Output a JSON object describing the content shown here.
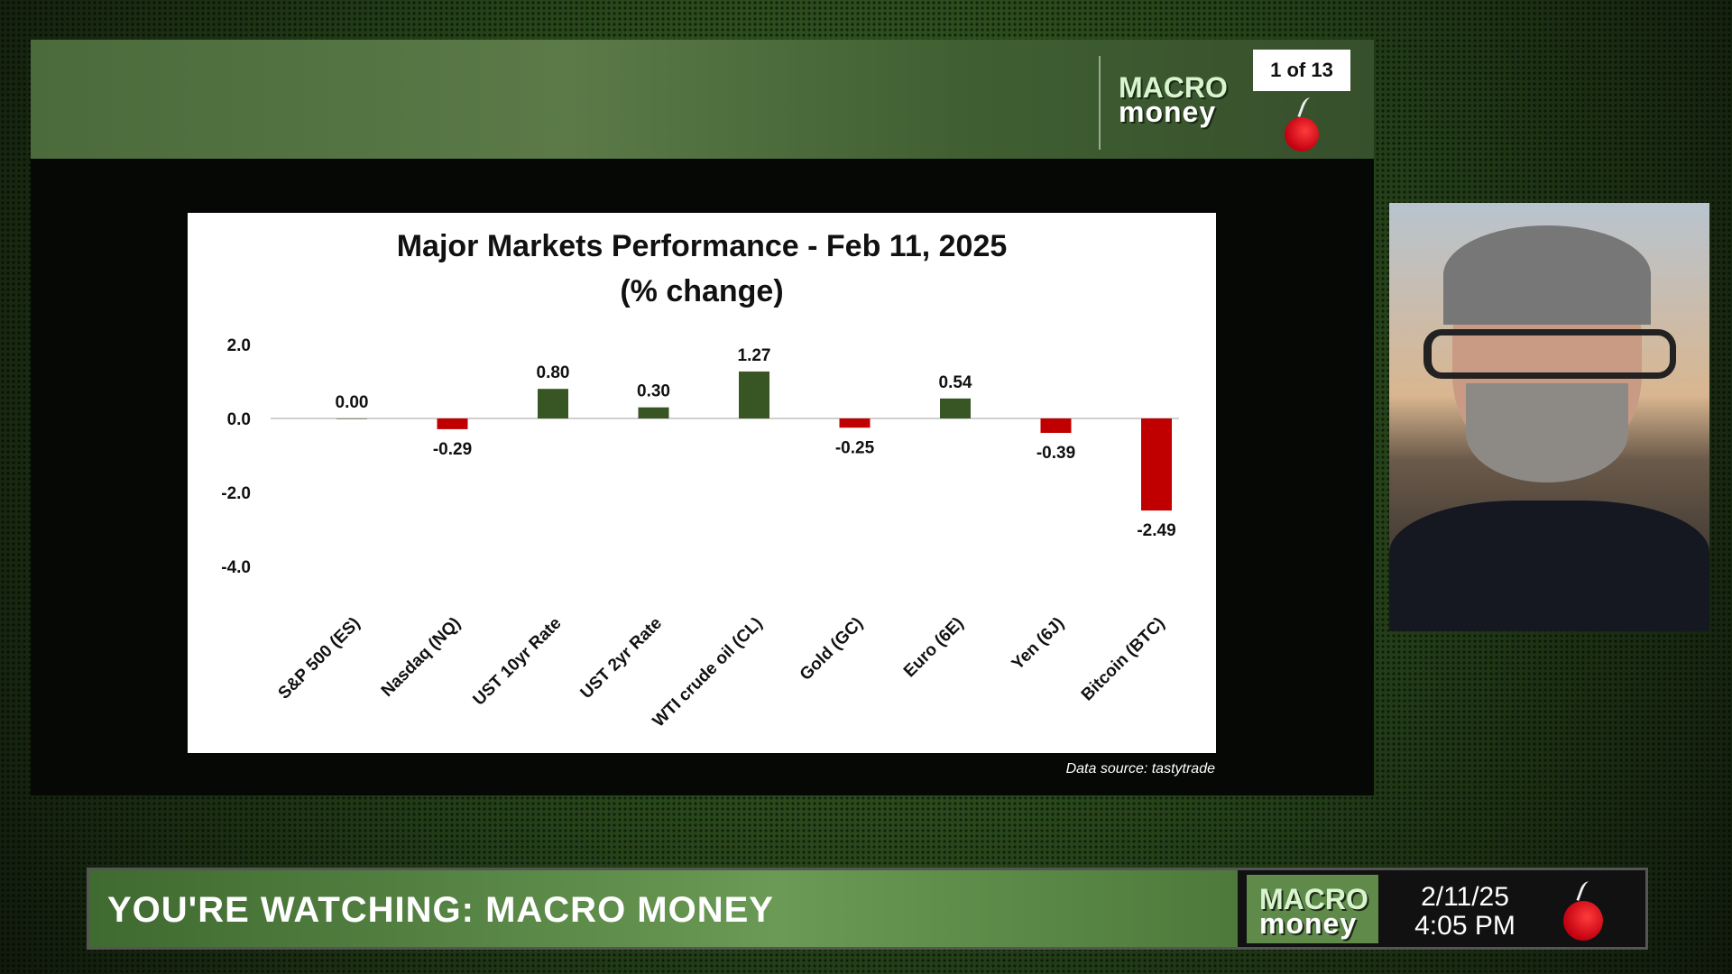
{
  "header": {
    "logo_top": "MACRO",
    "logo_bottom": "money",
    "page_indicator": "1 of 13"
  },
  "chart_data": {
    "type": "bar",
    "title": "Major Markets Performance - Feb 11, 2025",
    "subtitle": "(% change)",
    "categories": [
      "S&P 500 (ES)",
      "Nasdaq (NQ)",
      "UST 10yr Rate",
      "UST 2yr Rate",
      "WTI crude oil (CL)",
      "Gold (GC)",
      "Euro (6E)",
      "Yen (6J)",
      "Bitcoin (BTC)"
    ],
    "values": [
      0.0,
      -0.29,
      0.8,
      0.3,
      1.27,
      -0.25,
      0.54,
      -0.39,
      -2.49
    ],
    "labels": [
      "0.00",
      "-0.29",
      "0.80",
      "0.30",
      "1.27",
      "-0.25",
      "0.54",
      "-0.39",
      "-2.49"
    ],
    "yticks": [
      "2.0",
      "0.0",
      "-2.0",
      "-4.0"
    ],
    "ytick_values": [
      2,
      0,
      -2,
      -4
    ],
    "ylim": [
      -4,
      2
    ],
    "colors": {
      "positive": "#375623",
      "negative": "#c00000"
    }
  },
  "source": "Data source: tastytrade",
  "ticker": {
    "title": "YOU'RE WATCHING: MACRO MONEY",
    "logo_top": "MACRO",
    "logo_bottom": "money",
    "date": "2/11/25",
    "time": "4:05 PM"
  }
}
